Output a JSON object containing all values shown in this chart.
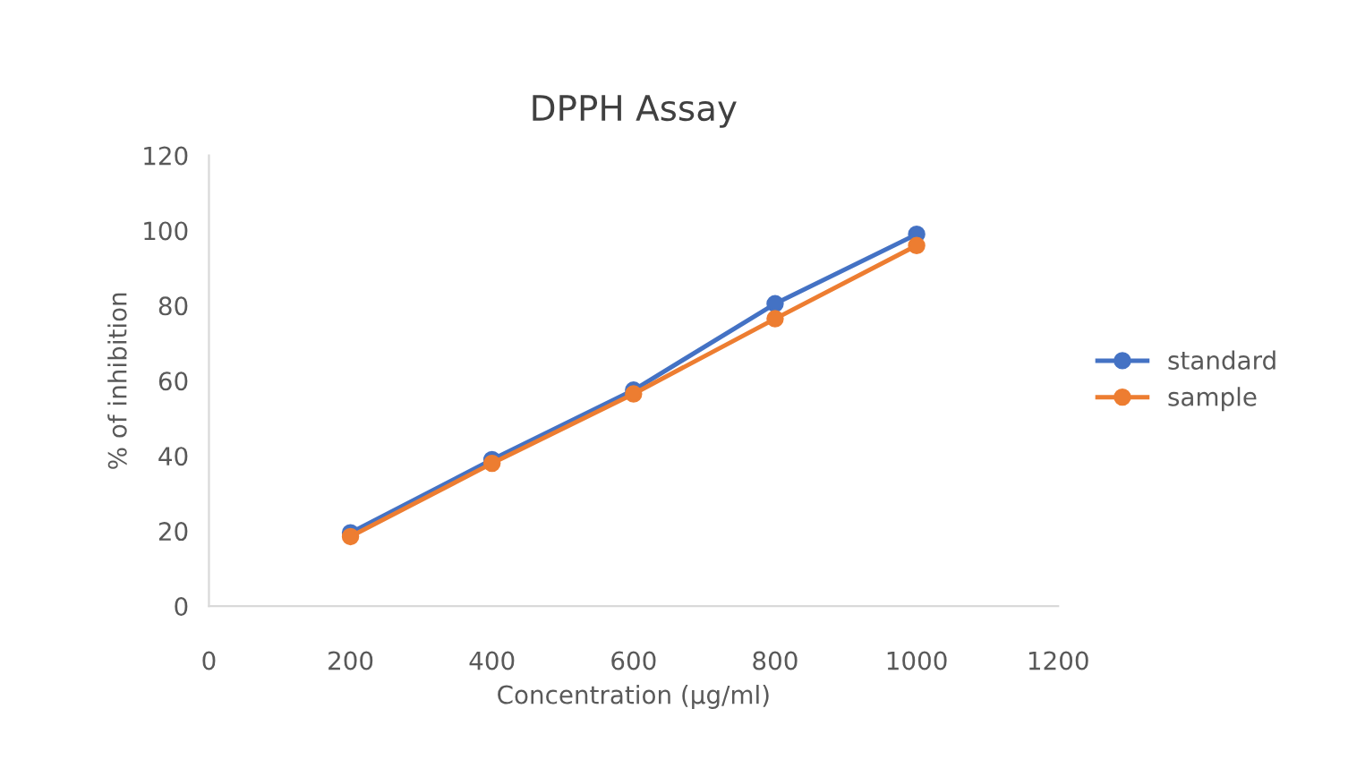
{
  "chart_data": {
    "type": "line",
    "title": "DPPH Assay",
    "xlabel": "Concentration (µg/ml)",
    "ylabel": "% of inhibition",
    "x": [
      200,
      400,
      600,
      800,
      1000
    ],
    "series": [
      {
        "name": "standard",
        "color": "#4472c4",
        "values": [
          19.5,
          39,
          57.5,
          80.5,
          99
        ]
      },
      {
        "name": "sample",
        "color": "#ed7d31",
        "values": [
          18.5,
          38,
          56.5,
          76.5,
          96
        ]
      }
    ],
    "xlim": [
      0,
      1200
    ],
    "xticks": [
      0,
      200,
      400,
      600,
      800,
      1000,
      1200
    ],
    "ylim": [
      0,
      120
    ],
    "yticks": [
      0,
      20,
      40,
      60,
      80,
      100,
      120
    ],
    "grid": false,
    "legend": "right",
    "marker": "circle",
    "line_style": "solid"
  }
}
